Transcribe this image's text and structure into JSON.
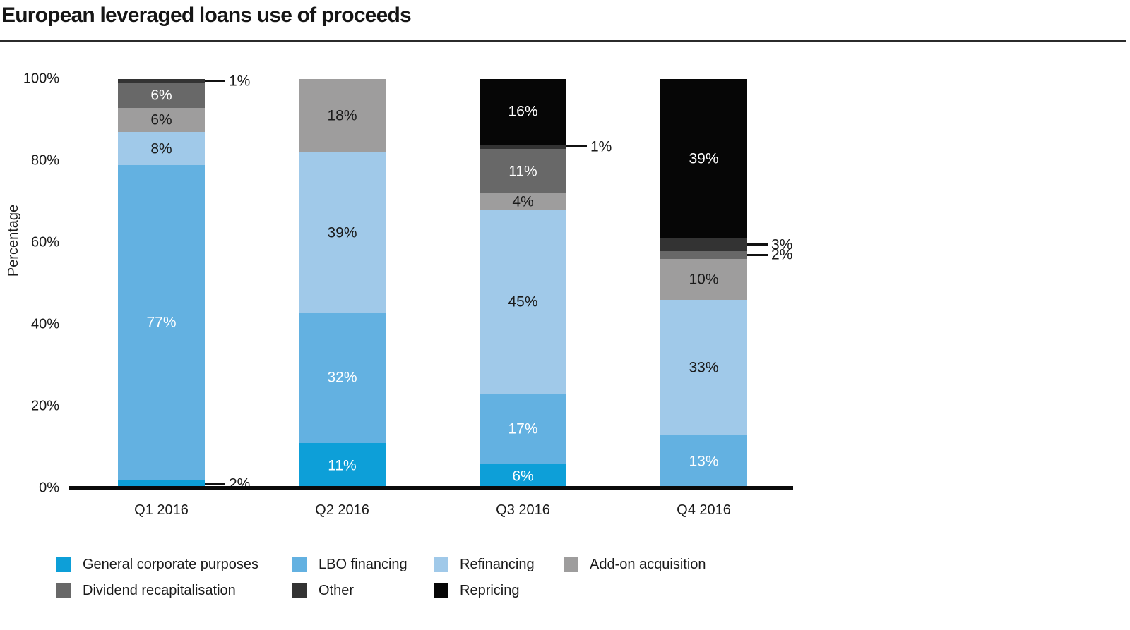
{
  "chart_data": {
    "type": "bar",
    "stacked": true,
    "title": "European leveraged loans use of proceeds",
    "xlabel": "",
    "ylabel": "Percentage",
    "ylim": [
      0,
      100
    ],
    "grid": false,
    "legend_position": "bottom",
    "value_label_format": "{value}%",
    "callout_threshold_pct": 4,
    "categories": [
      "Q1 2016",
      "Q2 2016",
      "Q3 2016",
      "Q4 2016"
    ],
    "series": [
      {
        "name": "General corporate purposes",
        "color": "#0d9fd8",
        "label_color": "#ffffff",
        "values": [
          2,
          11,
          6,
          0
        ]
      },
      {
        "name": "LBO financing",
        "color": "#63b1e1",
        "label_color": "#ffffff",
        "values": [
          77,
          32,
          17,
          13
        ]
      },
      {
        "name": "Refinancing",
        "color": "#a0c9e9",
        "label_color": "#1a1a1a",
        "values": [
          8,
          39,
          45,
          33
        ]
      },
      {
        "name": "Add-on acquisition",
        "color": "#9e9d9d",
        "label_color": "#1a1a1a",
        "values": [
          6,
          18,
          4,
          10
        ]
      },
      {
        "name": "Dividend recapitalisation",
        "color": "#686868",
        "label_color": "#ffffff",
        "values": [
          6,
          0,
          11,
          2
        ]
      },
      {
        "name": "Other",
        "color": "#333333",
        "label_color": "#ffffff",
        "values": [
          1,
          0,
          1,
          3
        ]
      },
      {
        "name": "Repricing",
        "color": "#060606",
        "label_color": "#ffffff",
        "values": [
          0,
          0,
          16,
          39
        ]
      }
    ],
    "y_ticks": [
      {
        "pct": 0,
        "label": "0%"
      },
      {
        "pct": 20,
        "label": "20%"
      },
      {
        "pct": 40,
        "label": "40%"
      },
      {
        "pct": 60,
        "label": "60%"
      },
      {
        "pct": 80,
        "label": "80%"
      },
      {
        "pct": 100,
        "label": "100%"
      }
    ]
  },
  "colors": {
    "text": "#1a1a1a",
    "axis_line": "#0a0a0a",
    "background": "#ffffff"
  }
}
